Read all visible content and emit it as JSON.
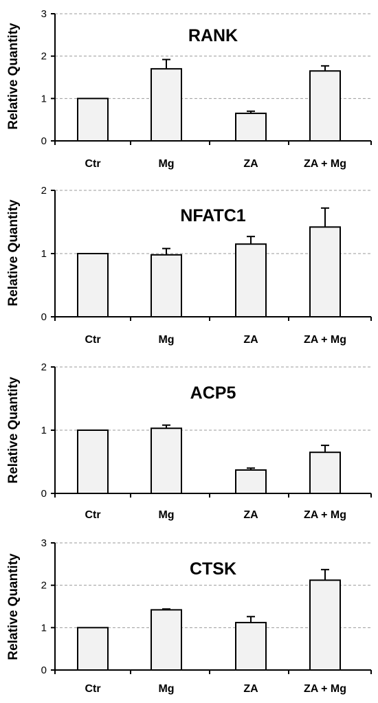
{
  "chart_data": [
    {
      "type": "bar",
      "title": "RANK",
      "ylabel": "Relative Quantity",
      "xlabel": "",
      "categories": [
        "Ctr",
        "Mg",
        "ZA",
        "ZA + Mg"
      ],
      "values": [
        1.0,
        1.7,
        0.65,
        1.65
      ],
      "errors": [
        0,
        0.22,
        0.05,
        0.12
      ],
      "ylim": [
        0,
        3
      ],
      "yticks": [
        0,
        1,
        2,
        3
      ],
      "grid": true
    },
    {
      "type": "bar",
      "title": "NFATC1",
      "ylabel": "Relative Quantity",
      "xlabel": "",
      "categories": [
        "Ctr",
        "Mg",
        "ZA",
        "ZA + Mg"
      ],
      "values": [
        1.0,
        0.98,
        1.15,
        1.42
      ],
      "errors": [
        0,
        0.1,
        0.12,
        0.3
      ],
      "ylim": [
        0,
        2
      ],
      "yticks": [
        0,
        1,
        2
      ],
      "grid": true
    },
    {
      "type": "bar",
      "title": "ACP5",
      "ylabel": "Relative Quantity",
      "xlabel": "",
      "categories": [
        "Ctr",
        "Mg",
        "ZA",
        "ZA + Mg"
      ],
      "values": [
        1.0,
        1.03,
        0.37,
        0.65
      ],
      "errors": [
        0,
        0.05,
        0.03,
        0.11
      ],
      "ylim": [
        0,
        2
      ],
      "yticks": [
        0,
        1,
        2
      ],
      "grid": true
    },
    {
      "type": "bar",
      "title": "CTSK",
      "ylabel": "Relative Quantity",
      "xlabel": "",
      "categories": [
        "Ctr",
        "Mg",
        "ZA",
        "ZA + Mg"
      ],
      "values": [
        1.0,
        1.42,
        1.12,
        2.12
      ],
      "errors": [
        0,
        0.02,
        0.14,
        0.25
      ],
      "ylim": [
        0,
        3
      ],
      "yticks": [
        0,
        1,
        2,
        3
      ],
      "grid": true
    }
  ]
}
